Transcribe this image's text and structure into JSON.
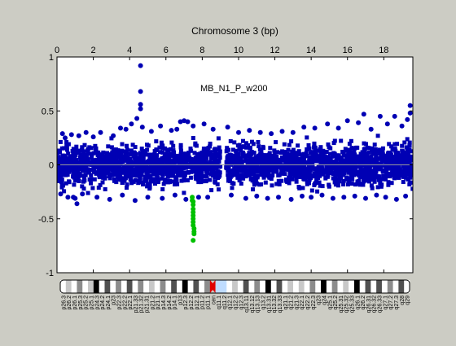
{
  "chart_data": {
    "type": "scatter",
    "title": "Chromosome 3 (bp)",
    "annotation": "MB_N1_P_w200",
    "x_ticks": [
      0,
      2,
      4,
      6,
      8,
      10,
      12,
      14,
      16,
      18
    ],
    "y_ticks": [
      -1,
      -0.5,
      0,
      0.5,
      1
    ],
    "y_tick_labels": [
      "-1",
      "-0.5",
      "0",
      "0.5",
      "1"
    ],
    "xlim": [
      0,
      19.6
    ],
    "ylim": [
      -1,
      1
    ],
    "grid": false,
    "zero_line": true,
    "centromere_gap": [
      9.0,
      9.3
    ],
    "band": {
      "mean": 0,
      "spread": 0.2,
      "x_range": [
        0,
        19.6
      ]
    },
    "series": [
      {
        "color": "#0000b4",
        "x": [
          0.3,
          0.45,
          0.8,
          1.2,
          1.6,
          2.0,
          2.4,
          3.1,
          3.5,
          3.8,
          4.1,
          4.4,
          4.6,
          4.6,
          4.6,
          4.6,
          4.7,
          5.2,
          5.7,
          6.3,
          6.6,
          6.8,
          7.0,
          7.2,
          7.5,
          8.1,
          8.6,
          9.4,
          10.0,
          10.6,
          11.2,
          11.8,
          12.4,
          13.0,
          13.6,
          14.2,
          14.9,
          15.5,
          16.0,
          16.6,
          16.9,
          17.3,
          17.8,
          18.2,
          18.6,
          19.0,
          19.3,
          19.45,
          19.45,
          0.2,
          0.6,
          1.0,
          1.4,
          2.2,
          2.9,
          3.6,
          4.3,
          5.0,
          5.8,
          6.5,
          7.1,
          7.8,
          8.3,
          9.6,
          10.4,
          11.0,
          11.6,
          12.2,
          12.9,
          13.5,
          14.0,
          14.6,
          15.2,
          15.8,
          16.4,
          17.0,
          17.6,
          18.1,
          18.7,
          19.2,
          1.1,
          0.9
        ],
        "y": [
          0.29,
          0.25,
          0.28,
          0.27,
          0.3,
          0.26,
          0.3,
          0.27,
          0.34,
          0.33,
          0.38,
          0.43,
          0.92,
          0.68,
          0.56,
          0.52,
          0.35,
          0.31,
          0.36,
          0.32,
          0.33,
          0.4,
          0.41,
          0.4,
          0.36,
          0.38,
          0.33,
          0.35,
          0.3,
          0.32,
          0.3,
          0.29,
          0.31,
          0.3,
          0.35,
          0.34,
          0.38,
          0.34,
          0.41,
          0.39,
          0.47,
          0.33,
          0.45,
          0.38,
          0.45,
          0.36,
          0.42,
          0.55,
          0.48,
          -0.27,
          -0.3,
          -0.31,
          -0.27,
          -0.3,
          -0.32,
          -0.28,
          -0.33,
          -0.3,
          -0.31,
          -0.28,
          -0.32,
          -0.3,
          -0.3,
          -0.28,
          -0.31,
          -0.29,
          -0.31,
          -0.3,
          -0.32,
          -0.29,
          -0.3,
          -0.28,
          -0.31,
          -0.3,
          -0.29,
          -0.31,
          -0.28,
          -0.3,
          -0.32,
          -0.29,
          -0.36,
          -0.3
        ]
      },
      {
        "color": "#00c000",
        "x": [
          7.45,
          7.45,
          7.5,
          7.5,
          7.5,
          7.5,
          7.5,
          7.5,
          7.5,
          7.5,
          7.55,
          7.55,
          7.55,
          7.5
        ],
        "y": [
          -0.3,
          -0.33,
          -0.34,
          -0.37,
          -0.41,
          -0.44,
          -0.47,
          -0.5,
          -0.53,
          -0.56,
          -0.59,
          -0.62,
          -0.64,
          -0.7
        ]
      }
    ]
  },
  "ideogram": {
    "bands": [
      {
        "label": "p26.3",
        "stain": "gneg"
      },
      {
        "label": "p26.2",
        "stain": "gpos25"
      },
      {
        "label": "p26.1",
        "stain": "gneg"
      },
      {
        "label": "p25.3",
        "stain": "gpos50"
      },
      {
        "label": "p25.2",
        "stain": "gneg"
      },
      {
        "label": "p25.1",
        "stain": "gpos25"
      },
      {
        "label": "p24.3",
        "stain": "gpos100"
      },
      {
        "label": "p24.2",
        "stain": "gneg"
      },
      {
        "label": "p24.1",
        "stain": "gpos75"
      },
      {
        "label": "p23",
        "stain": "gneg"
      },
      {
        "label": "p22.3",
        "stain": "gpos50"
      },
      {
        "label": "p22.2",
        "stain": "gneg"
      },
      {
        "label": "p22.1",
        "stain": "gpos75"
      },
      {
        "label": "p21.33",
        "stain": "gneg"
      },
      {
        "label": "p21.32",
        "stain": "gpos50"
      },
      {
        "label": "p21.31",
        "stain": "gneg"
      },
      {
        "label": "p21.2",
        "stain": "gpos25"
      },
      {
        "label": "p21.1",
        "stain": "gneg"
      },
      {
        "label": "p14.3",
        "stain": "gpos50"
      },
      {
        "label": "p14.2",
        "stain": "gneg"
      },
      {
        "label": "p14.1",
        "stain": "gpos75"
      },
      {
        "label": "p13",
        "stain": "gneg"
      },
      {
        "label": "p12.3",
        "stain": "gpos100"
      },
      {
        "label": "p12.2",
        "stain": "gneg"
      },
      {
        "label": "p12.1",
        "stain": "gpos75"
      },
      {
        "label": "p11.2",
        "stain": "gneg"
      },
      {
        "label": "p11.1",
        "stain": "gpos50"
      },
      {
        "label": "cen",
        "stain": "acen"
      },
      {
        "label": "q11.1",
        "stain": "gvar"
      },
      {
        "label": "q11.2",
        "stain": "gvar"
      },
      {
        "label": "q12.1",
        "stain": "gneg"
      },
      {
        "label": "q12.2",
        "stain": "gpos25"
      },
      {
        "label": "q12.3",
        "stain": "gneg"
      },
      {
        "label": "q13.11",
        "stain": "gpos75"
      },
      {
        "label": "q13.12",
        "stain": "gneg"
      },
      {
        "label": "q13.13",
        "stain": "gpos50"
      },
      {
        "label": "q13.2",
        "stain": "gneg"
      },
      {
        "label": "q13.31",
        "stain": "gpos100"
      },
      {
        "label": "q13.32",
        "stain": "gneg"
      },
      {
        "label": "q13.33",
        "stain": "gpos75"
      },
      {
        "label": "q21.1",
        "stain": "gneg"
      },
      {
        "label": "q21.2",
        "stain": "gpos25"
      },
      {
        "label": "q21.3",
        "stain": "gneg"
      },
      {
        "label": "q22.1",
        "stain": "gpos25"
      },
      {
        "label": "q22.2",
        "stain": "gneg"
      },
      {
        "label": "q22.3",
        "stain": "gpos50"
      },
      {
        "label": "q23",
        "stain": "gneg"
      },
      {
        "label": "q24",
        "stain": "gpos100"
      },
      {
        "label": "q25.1",
        "stain": "gneg"
      },
      {
        "label": "q25.2",
        "stain": "gpos50"
      },
      {
        "label": "q25.31",
        "stain": "gneg"
      },
      {
        "label": "q25.32",
        "stain": "gpos25"
      },
      {
        "label": "q25.33",
        "stain": "gneg"
      },
      {
        "label": "q26.1",
        "stain": "gpos100"
      },
      {
        "label": "q26.2",
        "stain": "gneg"
      },
      {
        "label": "q26.31",
        "stain": "gpos75"
      },
      {
        "label": "q26.32",
        "stain": "gneg"
      },
      {
        "label": "q26.33",
        "stain": "gpos75"
      },
      {
        "label": "q27.1",
        "stain": "gneg"
      },
      {
        "label": "q27.2",
        "stain": "gpos50"
      },
      {
        "label": "q27.3",
        "stain": "gneg"
      },
      {
        "label": "q28",
        "stain": "gpos75"
      },
      {
        "label": "q29",
        "stain": "gneg"
      }
    ]
  }
}
